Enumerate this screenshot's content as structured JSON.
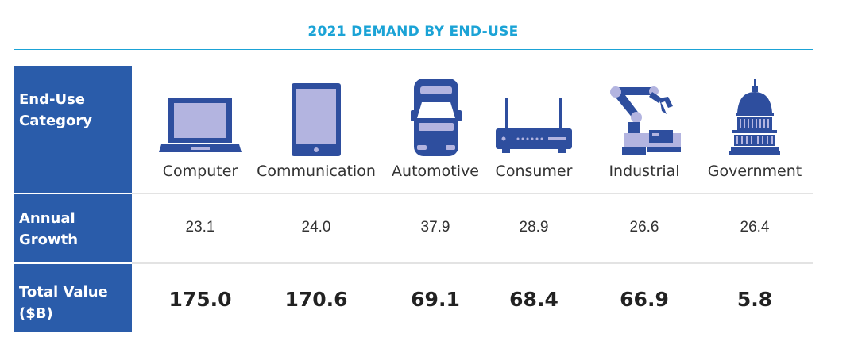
{
  "title": "2021 DEMAND BY END-USE",
  "colors": {
    "accent": "#1ba3d6",
    "header_bg": "#2a5caa",
    "icon_dark": "#2e4e9e",
    "icon_light": "#b3b4e0"
  },
  "header": {
    "category": "End-Use Category",
    "growth": "Annual Growth",
    "total": "Total Value ($B)"
  },
  "chart_data": {
    "type": "table",
    "title": "2021 DEMAND BY END-USE",
    "row_labels": [
      "End-Use Category",
      "Annual Growth",
      "Total Value ($B)"
    ],
    "categories": [
      "Computer",
      "Communication",
      "Automotive",
      "Consumer",
      "Industrial",
      "Government"
    ],
    "icons": [
      "laptop-icon",
      "tablet-icon",
      "car-icon",
      "router-icon",
      "robot-arm-icon",
      "capitol-icon"
    ],
    "series": [
      {
        "name": "Annual Growth",
        "values": [
          "23.1",
          "24.0",
          "37.9",
          "28.9",
          "26.6",
          "26.4"
        ]
      },
      {
        "name": "Total Value ($B)",
        "values": [
          "175.0",
          "170.6",
          "69.1",
          "68.4",
          "66.9",
          "5.8"
        ]
      }
    ]
  }
}
